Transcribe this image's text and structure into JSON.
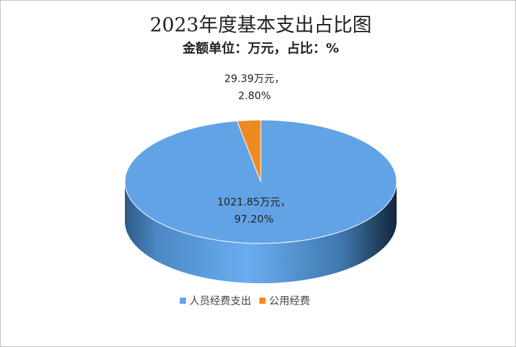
{
  "chart_data": {
    "type": "pie3d",
    "title": "2023年度基本支出占比图",
    "subtitle": "金额单位：万元，占比：%",
    "categories": [
      "人员经费支出",
      "公用经费"
    ],
    "values": [
      1021.85,
      29.39
    ],
    "value_labels": [
      [
        "1021.85万元，",
        "97.20%"
      ],
      [
        "29.39万元，",
        "2.80%"
      ]
    ],
    "colors": [
      "#62a3e6",
      "#f08a1f"
    ],
    "legend": "bottom"
  }
}
